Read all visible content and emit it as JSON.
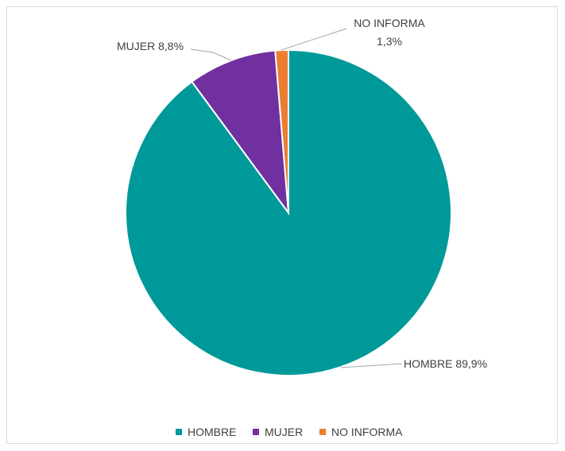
{
  "chart_data": {
    "type": "pie",
    "categories": [
      "HOMBRE",
      "MUJER",
      "NO INFORMA"
    ],
    "values": [
      89.9,
      8.8,
      1.3
    ],
    "value_labels": [
      "89,9%",
      "8,8%",
      "1,3%"
    ],
    "colors": [
      "#009999",
      "#7030a0",
      "#ed7d31"
    ],
    "legend_position": "bottom",
    "title": ""
  }
}
